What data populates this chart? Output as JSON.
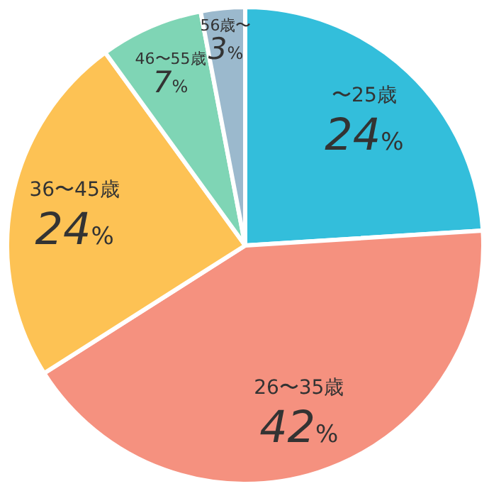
{
  "chart_data": {
    "type": "pie",
    "categories": [
      "〜25歳",
      "26〜35歳",
      "36〜45歳",
      "46〜55歳",
      "56歳〜"
    ],
    "values": [
      24,
      42,
      24,
      7,
      3
    ],
    "value_labels": [
      "24%",
      "42%",
      "24%",
      "7%",
      "3%"
    ],
    "colors": [
      "#33bedb",
      "#f5917f",
      "#fdc254",
      "#7fd5b5",
      "#9bb9cd"
    ],
    "legend": false
  }
}
